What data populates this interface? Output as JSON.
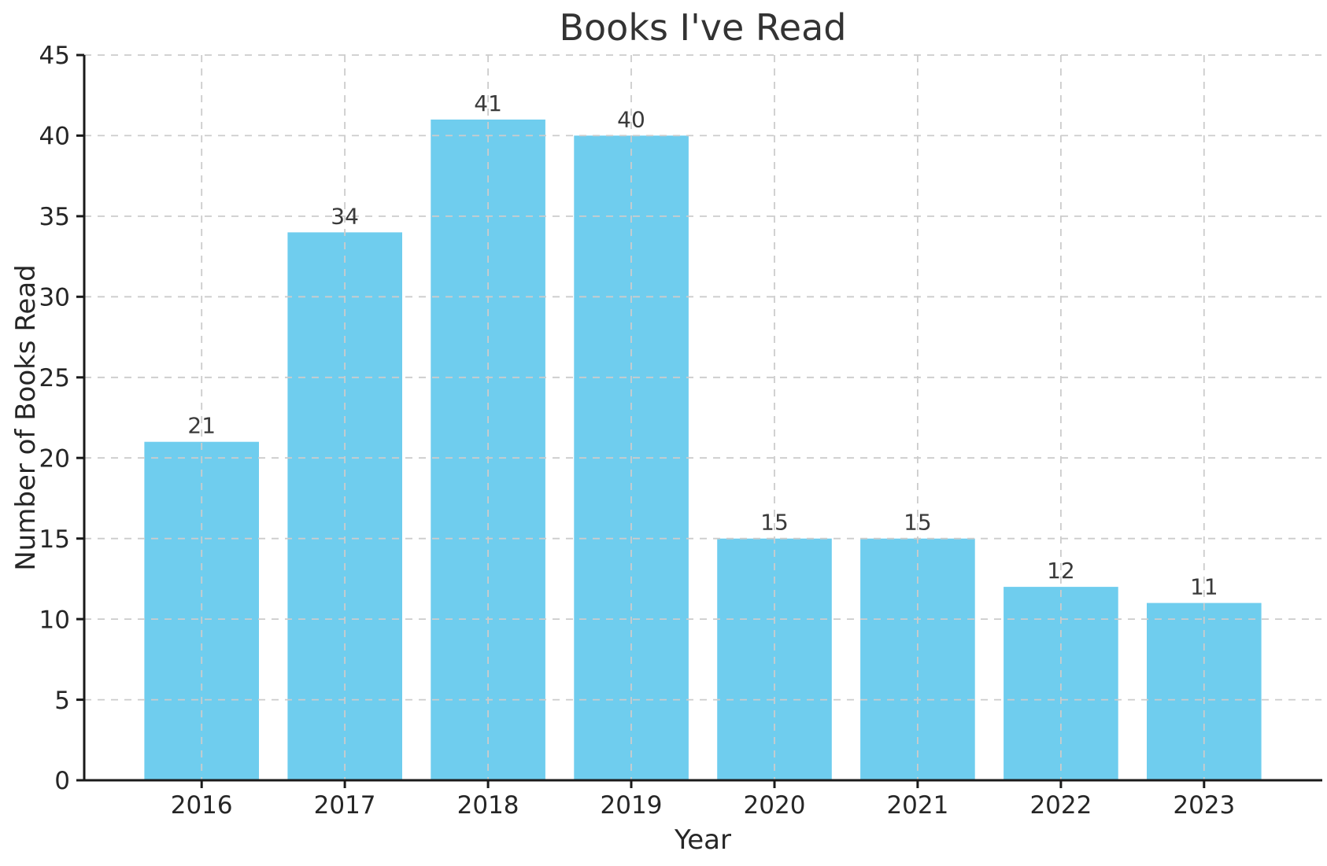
{
  "chart_data": {
    "type": "bar",
    "title": "Books I've Read",
    "xlabel": "Year",
    "ylabel": "Number of Books Read",
    "categories": [
      "2016",
      "2017",
      "2018",
      "2019",
      "2020",
      "2021",
      "2022",
      "2023"
    ],
    "values": [
      21,
      34,
      41,
      40,
      15,
      15,
      12,
      11
    ],
    "bar_value_labels": [
      "21",
      "34",
      "41",
      "40",
      "15",
      "15",
      "12",
      "11"
    ],
    "ylim": [
      0,
      45
    ],
    "yticks": [
      0,
      5,
      10,
      15,
      20,
      25,
      30,
      35,
      40,
      45
    ],
    "grid": "dashed-both-axes-over-bars",
    "legend": "none",
    "colors": {
      "bar_fill": "#6fcdee",
      "grid_line": "#cccccc",
      "spine": "#1a1a1a",
      "tick_text": "#262626",
      "bar_label_text": "#3a3a3a",
      "title_text": "#333333",
      "background": "#ffffff"
    }
  }
}
